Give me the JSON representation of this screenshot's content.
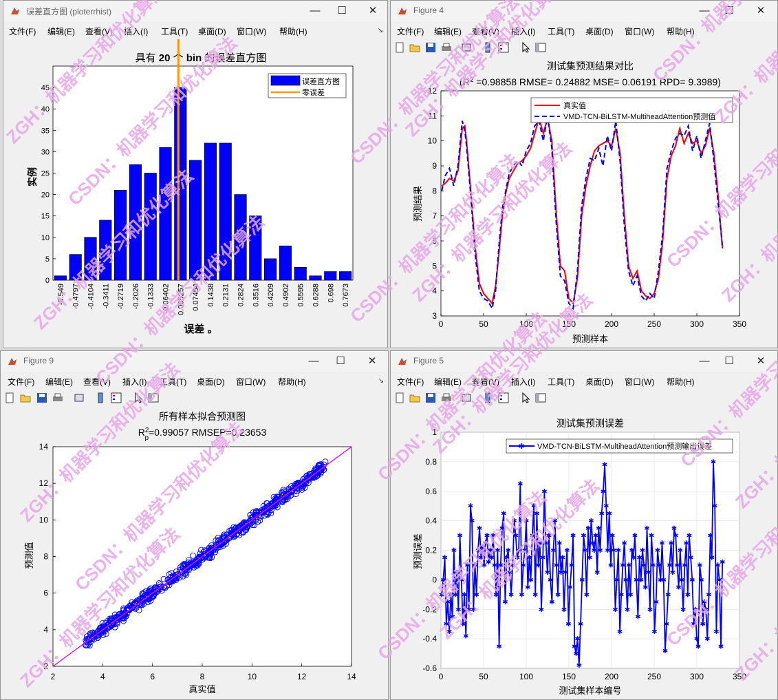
{
  "windows": {
    "w1": {
      "title": "误差直方图 (ploterrhist)",
      "menu": [
        "文件(F)",
        "编辑(E)",
        "查看(V)",
        "插入(I)",
        "工具(T)",
        "桌面(D)",
        "窗口(W)",
        "帮助(H)"
      ]
    },
    "w2": {
      "title": "Figure 4",
      "menu": [
        "文件(F)",
        "编辑(E)",
        "查看(V)",
        "插入(I)",
        "工具(T)",
        "桌面(D)",
        "窗口(W)",
        "帮助(H)"
      ]
    },
    "w3": {
      "title": "Figure 9",
      "menu": [
        "文件(F)",
        "编辑(E)",
        "查看(V)",
        "插入(I)",
        "工具(T)",
        "桌面(D)",
        "窗口(W)",
        "帮助(H)"
      ]
    },
    "w4": {
      "title": "Figure 5",
      "menu": [
        "文件(F)",
        "编辑(E)",
        "查看(V)",
        "插入(I)",
        "工具(T)",
        "桌面(D)",
        "窗口(W)",
        "帮助(H)"
      ]
    }
  },
  "watermark": [
    "ZGH：机器学习和优化算法",
    "CSDN：机器学习和优化算法"
  ],
  "colors": {
    "blue": "#0000ff",
    "red": "#ff0000",
    "orange": "#ff9900",
    "magenta": "#ff00ff",
    "watermark": "#e8a6e8"
  },
  "chart_data": [
    {
      "id": "hist",
      "type": "bar",
      "title": "具有 20 个 bin 的误差直方图",
      "title_parts": {
        "pre": "具有 ",
        "n": "20",
        "mid": " 个 ",
        "bin": "bin",
        "post": " 的误差直方图"
      },
      "xlabel": "误差 。",
      "ylabel": "实例",
      "categories": [
        "-0.549",
        "-0.4797",
        "-0.4104",
        "-0.3411",
        "-0.2719",
        "-0.2026",
        "-0.1333",
        "-0.06402",
        "0.005257",
        "0.07454",
        "0.1438",
        "0.2131",
        "0.2824",
        "0.3516",
        "0.4209",
        "0.4902",
        "0.5595",
        "0.6288",
        "0.698",
        "0.7673"
      ],
      "values": [
        1,
        6,
        10,
        14,
        21,
        27,
        25,
        31,
        45,
        28,
        32,
        32,
        20,
        15,
        5,
        8,
        3,
        1,
        2,
        2
      ],
      "ylim": [
        0,
        50
      ],
      "yticks": [
        0,
        5,
        10,
        15,
        20,
        25,
        30,
        35,
        40,
        45
      ],
      "zero_line": 0,
      "legend": [
        "误差直方图",
        "零误差"
      ]
    },
    {
      "id": "compare",
      "type": "line",
      "title": "测试集预测结果对比",
      "subtitle_pre": "(R",
      "subtitle_sup": "2",
      "subtitle_post": " =0.98858 RMSE= 0.24882 MSE= 0.06191 RPD= 9.3989)",
      "xlabel": "预测样本",
      "ylabel": "预测结果",
      "xlim": [
        0,
        350
      ],
      "ylim": [
        3,
        12
      ],
      "xticks": [
        0,
        50,
        100,
        150,
        200,
        250,
        300,
        350
      ],
      "yticks": [
        3,
        4,
        5,
        6,
        7,
        8,
        9,
        10,
        11,
        12
      ],
      "legend": [
        "真实值",
        "VMD-TCN-BiLSTM-MultiheadAttention预测值"
      ],
      "series": [
        {
          "name": "真实值",
          "points": [
            [
              1,
              8.2
            ],
            [
              5,
              8.3
            ],
            [
              10,
              8.5
            ],
            [
              15,
              8.4
            ],
            [
              20,
              8.8
            ],
            [
              25,
              10.5
            ],
            [
              28,
              10.6
            ],
            [
              30,
              10.0
            ],
            [
              35,
              8.0
            ],
            [
              40,
              5.8
            ],
            [
              45,
              4.3
            ],
            [
              50,
              3.9
            ],
            [
              55,
              3.7
            ],
            [
              60,
              3.5
            ],
            [
              64,
              4.2
            ],
            [
              68,
              5.5
            ],
            [
              72,
              7.0
            ],
            [
              76,
              7.9
            ],
            [
              80,
              8.5
            ],
            [
              85,
              8.8
            ],
            [
              90,
              9.1
            ],
            [
              95,
              9.2
            ],
            [
              100,
              9.4
            ],
            [
              105,
              9.7
            ],
            [
              110,
              10.3
            ],
            [
              115,
              10.9
            ],
            [
              120,
              10.3
            ],
            [
              125,
              10.9
            ],
            [
              130,
              10.0
            ],
            [
              135,
              7.2
            ],
            [
              140,
              5.0
            ],
            [
              145,
              4.8
            ],
            [
              150,
              3.7
            ],
            [
              155,
              3.5
            ],
            [
              160,
              4.5
            ],
            [
              165,
              7.0
            ],
            [
              170,
              8.2
            ],
            [
              175,
              9.0
            ],
            [
              180,
              9.6
            ],
            [
              185,
              9.8
            ],
            [
              190,
              9.9
            ],
            [
              195,
              10.0
            ],
            [
              200,
              9.8
            ],
            [
              205,
              10.5
            ],
            [
              210,
              9.5
            ],
            [
              215,
              7.0
            ],
            [
              220,
              5.0
            ],
            [
              225,
              4.5
            ],
            [
              230,
              4.8
            ],
            [
              235,
              4.0
            ],
            [
              240,
              3.8
            ],
            [
              245,
              3.7
            ],
            [
              250,
              3.9
            ],
            [
              255,
              4.5
            ],
            [
              260,
              6.0
            ],
            [
              265,
              8.5
            ],
            [
              270,
              9.4
            ],
            [
              275,
              9.8
            ],
            [
              280,
              10.5
            ],
            [
              285,
              9.9
            ],
            [
              290,
              10.3
            ],
            [
              295,
              9.9
            ],
            [
              300,
              10.0
            ],
            [
              305,
              9.5
            ],
            [
              310,
              9.8
            ],
            [
              315,
              10.5
            ],
            [
              320,
              9.5
            ],
            [
              325,
              7.8
            ],
            [
              330,
              5.7
            ]
          ]
        },
        {
          "name": "VMD-TCN-BiLSTM-MultiheadAttention预测值",
          "points": [
            [
              1,
              8.0
            ],
            [
              5,
              8.6
            ],
            [
              10,
              8.9
            ],
            [
              15,
              8.2
            ],
            [
              20,
              9.0
            ],
            [
              25,
              10.8
            ],
            [
              28,
              10.4
            ],
            [
              30,
              9.8
            ],
            [
              35,
              7.8
            ],
            [
              40,
              5.5
            ],
            [
              45,
              4.0
            ],
            [
              50,
              3.7
            ],
            [
              55,
              3.6
            ],
            [
              60,
              3.3
            ],
            [
              64,
              4.0
            ],
            [
              68,
              5.8
            ],
            [
              72,
              7.3
            ],
            [
              76,
              8.0
            ],
            [
              80,
              8.7
            ],
            [
              85,
              9.0
            ],
            [
              90,
              9.2
            ],
            [
              95,
              9.0
            ],
            [
              100,
              9.6
            ],
            [
              105,
              9.9
            ],
            [
              110,
              10.6
            ],
            [
              115,
              10.8
            ],
            [
              120,
              10.0
            ],
            [
              125,
              11.0
            ],
            [
              130,
              9.7
            ],
            [
              135,
              6.8
            ],
            [
              140,
              4.6
            ],
            [
              145,
              4.4
            ],
            [
              150,
              3.5
            ],
            [
              155,
              3.3
            ],
            [
              160,
              4.8
            ],
            [
              165,
              7.4
            ],
            [
              170,
              8.5
            ],
            [
              175,
              9.3
            ],
            [
              180,
              9.2
            ],
            [
              185,
              9.7
            ],
            [
              190,
              9.0
            ],
            [
              195,
              10.2
            ],
            [
              200,
              9.6
            ],
            [
              205,
              10.8
            ],
            [
              210,
              9.2
            ],
            [
              215,
              6.6
            ],
            [
              220,
              4.8
            ],
            [
              225,
              4.2
            ],
            [
              230,
              4.6
            ],
            [
              235,
              3.8
            ],
            [
              240,
              3.6
            ],
            [
              245,
              3.9
            ],
            [
              250,
              3.7
            ],
            [
              255,
              4.8
            ],
            [
              260,
              6.3
            ],
            [
              265,
              8.9
            ],
            [
              270,
              9.6
            ],
            [
              275,
              10.1
            ],
            [
              280,
              10.3
            ],
            [
              285,
              10.2
            ],
            [
              290,
              10.6
            ],
            [
              295,
              9.6
            ],
            [
              300,
              10.2
            ],
            [
              305,
              9.3
            ],
            [
              310,
              10.0
            ],
            [
              315,
              10.7
            ],
            [
              320,
              9.2
            ],
            [
              325,
              7.5
            ],
            [
              330,
              5.8
            ]
          ]
        }
      ]
    },
    {
      "id": "fit",
      "type": "scatter",
      "title": "所有样本拟合预测图",
      "subtitle_pre": "R",
      "subtitle_sup": "2",
      "subtitle_sub": "p",
      "subtitle_post": "=0.99057  RMSEP=0.23653",
      "xlabel": "真实值",
      "ylabel": "预测值",
      "xlim": [
        2,
        14
      ],
      "ylim": [
        2,
        14
      ],
      "xticks": [
        2,
        4,
        6,
        8,
        10,
        12,
        14
      ],
      "yticks": [
        2,
        4,
        6,
        8,
        10,
        12,
        14
      ],
      "points_cloud": {
        "x_range": [
          3.3,
          13.0
        ],
        "spread": 0.25,
        "count": 700
      },
      "fit_line": [
        [
          2,
          2
        ],
        [
          14,
          14
        ]
      ]
    },
    {
      "id": "error",
      "type": "line",
      "title": "测试集预测误差",
      "xlabel": "测试集样本编号",
      "ylabel": "预测误差",
      "xlim": [
        0,
        350
      ],
      "ylim": [
        -0.6,
        1
      ],
      "xticks": [
        0,
        50,
        100,
        150,
        200,
        250,
        300,
        350
      ],
      "yticks": [
        -0.6,
        -0.4,
        -0.2,
        0,
        0.2,
        0.4,
        0.6,
        0.8,
        1
      ],
      "legend": [
        "VMD-TCN-BiLSTM-MultiheadAttention预测输出误差"
      ],
      "values": [
        -0.1,
        0.0,
        0.15,
        -0.3,
        -0.15,
        -0.35,
        -0.1,
        -0.25,
        0.2,
        -0.1,
        0.05,
        -0.2,
        0.3,
        0.0,
        -0.3,
        -0.1,
        -0.38,
        0.1,
        -0.2,
        0.5,
        0.4,
        -0.2,
        0.1,
        -0.1,
        0.2,
        0.35,
        0.15,
        0.22,
        0.1,
        0.25,
        0.3,
        0.12,
        0.2,
        0.15,
        0.3,
        0.1,
        -0.1,
        0.2,
        -0.45,
        0.1,
        0.35,
        0.45,
        -0.15,
        0.15,
        0.2,
        0.05,
        -0.1,
        0.1,
        0.4,
        0.3,
        0.15,
        0.2,
        0.65,
        -0.1,
        0.1,
        0.2,
        0.4,
        -0.05,
        0.15,
        0.0,
        0.3,
        0.5,
        -0.1,
        0.45,
        0.1,
        0.25,
        -0.2,
        0.15,
        0.6,
        0.25,
        0.05,
        0.3,
        0.0,
        -0.15,
        0.2,
        0.4,
        0.1,
        -0.1,
        0.25,
        0.05,
        0.15,
        -0.2,
        0.05,
        0.2,
        -0.3,
        -0.05,
        0.1,
        0.3,
        -0.45,
        -0.5,
        -0.4,
        -0.58,
        -0.3,
        0.0,
        0.3,
        0.2,
        -0.1,
        0.35,
        0.15,
        0.4,
        0.25,
        0.2,
        0.3,
        0.05,
        0.35,
        0.2,
        0.45,
        0.6,
        0.78,
        0.5,
        0.2,
        0.45,
        0.1,
        0.3,
        0.2,
        -0.2,
        0.0,
        0.2,
        -0.35,
        -0.1,
        0.1,
        0.25,
        0.0,
        -0.2,
        0.1,
        -0.1,
        0.2,
        0.15,
        0.3,
        0.0,
        -0.25,
        0.15,
        0.0,
        0.2,
        0.1,
        -0.05,
        0.35,
        0.05,
        -0.2,
        0.3,
        0.1,
        -0.35,
        -0.15,
        0.2,
        0.1,
        0.0,
        0.25,
        0.0,
        -0.48,
        -0.3,
        -0.1,
        0.1,
        0.25,
        0.05,
        0.35,
        0.3,
        0.1,
        -0.05,
        0.2,
        0.0,
        -0.2,
        0.1,
        0.25,
        -0.1,
        0.3,
        0.15,
        0.0,
        -0.3,
        -0.2,
        -0.4,
        -0.45,
        0.1,
        0.0,
        -0.3,
        -0.15,
        -0.2,
        -0.4,
        -0.1,
        0.3,
        0.15,
        0.8,
        0.5,
        -0.35,
        0.1,
        0.0,
        -0.45,
        0.12
      ]
    }
  ]
}
